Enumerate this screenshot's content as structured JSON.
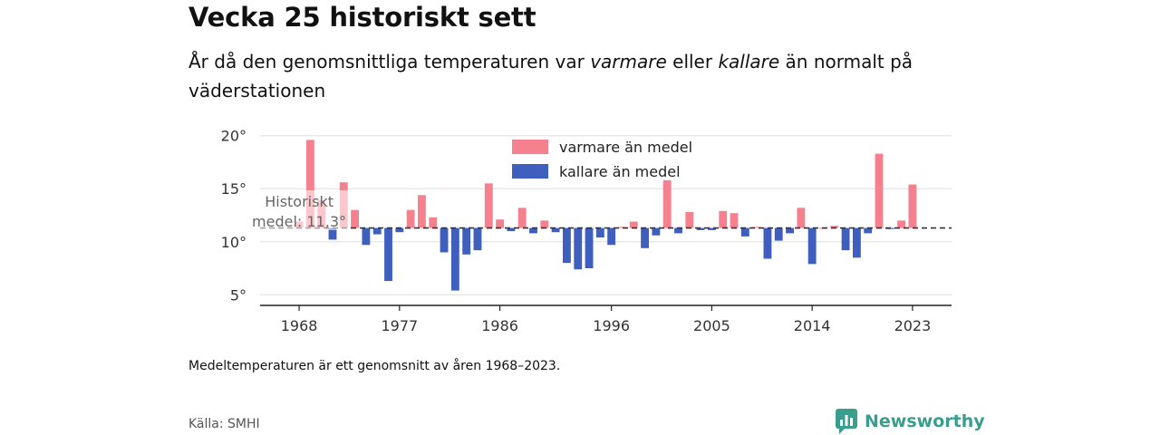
{
  "header": {
    "title": "Vecka 25 historiskt sett",
    "subtitle_pre": "År då den genomsnittliga temperaturen var ",
    "subtitle_warm": "varmare",
    "subtitle_mid": " eller ",
    "subtitle_cold": "kallare",
    "subtitle_post": " än normalt på väderstationen"
  },
  "footer": {
    "note": "Medeltemperaturen är ett genomsnitt av åren 1968–2023.",
    "source": "Källa: SMHI",
    "brand": "Newsworthy",
    "brand_color": "#3a9e8f"
  },
  "chart_data": {
    "type": "bar",
    "baseline": 11.3,
    "baseline_label_line1": "Historiskt",
    "baseline_label_line2": "medel: 11,3°",
    "ylim": [
      4,
      21
    ],
    "yticks": [
      5,
      10,
      15,
      20
    ],
    "ytick_labels": [
      "5°",
      "10°",
      "15°",
      "20°"
    ],
    "xticks": [
      1968,
      1977,
      1986,
      1996,
      2005,
      2014,
      2023
    ],
    "xlim": [
      1964.5,
      2026.5
    ],
    "colors": {
      "warm": "#f5818f",
      "cold": "#3f5fbf"
    },
    "legend": {
      "warm": "varmare än medel",
      "cold": "kallare än medel",
      "placement": "top-center"
    },
    "years": [
      1968,
      1969,
      1970,
      1971,
      1972,
      1973,
      1974,
      1975,
      1976,
      1977,
      1978,
      1979,
      1980,
      1981,
      1982,
      1983,
      1984,
      1985,
      1986,
      1987,
      1988,
      1989,
      1990,
      1991,
      1992,
      1993,
      1994,
      1995,
      1996,
      1997,
      1998,
      1999,
      2000,
      2001,
      2002,
      2003,
      2004,
      2005,
      2006,
      2007,
      2008,
      2009,
      2010,
      2011,
      2012,
      2013,
      2014,
      2015,
      2016,
      2017,
      2018,
      2019,
      2020,
      2021,
      2022,
      2023
    ],
    "values": [
      11.9,
      19.6,
      13.9,
      10.2,
      15.6,
      13.0,
      9.7,
      10.7,
      6.3,
      10.9,
      13.0,
      14.4,
      12.3,
      9.0,
      5.4,
      8.8,
      9.2,
      15.5,
      12.1,
      11.0,
      13.2,
      10.8,
      12.0,
      10.9,
      8.0,
      7.4,
      7.5,
      10.4,
      9.7,
      11.4,
      11.9,
      9.4,
      10.6,
      15.8,
      10.8,
      12.8,
      11.1,
      11.1,
      12.9,
      12.7,
      10.5,
      11.4,
      8.4,
      10.1,
      10.8,
      13.2,
      7.9,
      11.3,
      11.5,
      9.2,
      8.5,
      10.8,
      18.3,
      11.2,
      12.0,
      15.4
    ]
  }
}
